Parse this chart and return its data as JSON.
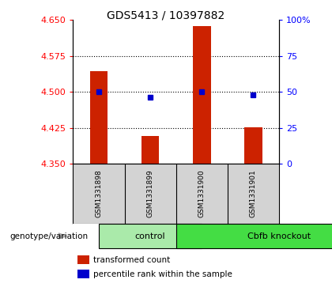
{
  "title": "GDS5413 / 10397882",
  "samples": [
    "GSM1331898",
    "GSM1331899",
    "GSM1331900",
    "GSM1331901"
  ],
  "group_labels": [
    "control",
    "Cbfb knockout"
  ],
  "group_colors": [
    "#aaeaaa",
    "#44dd44"
  ],
  "transformed_counts": [
    4.543,
    4.408,
    4.638,
    4.426
  ],
  "percentile_ranks": [
    50.0,
    46.0,
    50.0,
    48.0
  ],
  "ylim_left": [
    4.35,
    4.65
  ],
  "ylim_right": [
    0,
    100
  ],
  "yticks_left": [
    4.35,
    4.425,
    4.5,
    4.575,
    4.65
  ],
  "yticks_right": [
    0,
    25,
    50,
    75,
    100
  ],
  "grid_lines": [
    4.425,
    4.5,
    4.575
  ],
  "bar_color": "#CC2200",
  "dot_color": "#0000CC",
  "bar_bottom": 4.35,
  "bar_width": 0.35,
  "legend_label_bar": "transformed count",
  "legend_label_dot": "percentile rank within the sample",
  "xlabel_group": "genotype/variation"
}
